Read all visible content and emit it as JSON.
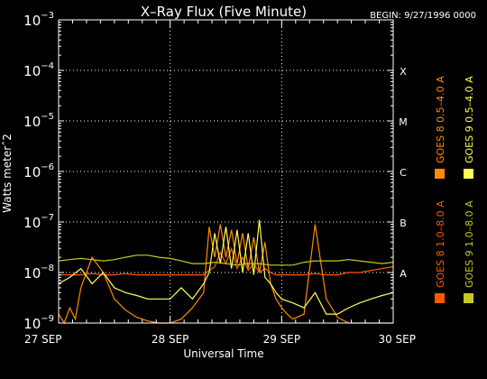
{
  "chart_data": {
    "type": "line",
    "title": "X–Ray Flux (Five Minute)",
    "begin_label": "BEGIN: 9/27/1996 0000",
    "xlabel": "Universal Time",
    "ylabel": "Watts meterˆ2",
    "y_scale": "log",
    "ylim": [
      1e-09,
      0.001
    ],
    "y_ticks": [
      {
        "base": "10",
        "exp": "−9",
        "value": 1e-09
      },
      {
        "base": "10",
        "exp": "−8",
        "value": 1e-08
      },
      {
        "base": "10",
        "exp": "−7",
        "value": 1e-07
      },
      {
        "base": "10",
        "exp": "−6",
        "value": 1e-06
      },
      {
        "base": "10",
        "exp": "−5",
        "value": 1e-05
      },
      {
        "base": "10",
        "exp": "−4",
        "value": 0.0001
      },
      {
        "base": "10",
        "exp": "−3",
        "value": 0.001
      }
    ],
    "x_ticks": [
      "27 SEP",
      "28 SEP",
      "29 SEP",
      "30 SEP"
    ],
    "xlim": [
      0,
      3
    ],
    "classes": [
      {
        "label": "A",
        "value": 1e-08
      },
      {
        "label": "B",
        "value": 1e-07
      },
      {
        "label": "C",
        "value": 1e-06
      },
      {
        "label": "M",
        "value": 1e-05
      },
      {
        "label": "X",
        "value": 0.0001
      }
    ],
    "grid": "dotted-at-classes-and-day-boundaries",
    "legend_placement": "right-vertical",
    "series": [
      {
        "name": "GOES 8 1.0–8.0 A",
        "color": "#ff5a00",
        "x": [
          0,
          0.1,
          0.2,
          0.3,
          0.4,
          0.5,
          0.6,
          0.7,
          0.8,
          0.9,
          1.0,
          1.1,
          1.2,
          1.3,
          1.35,
          1.4,
          1.45,
          1.5,
          1.55,
          1.6,
          1.65,
          1.7,
          1.75,
          1.8,
          1.85,
          1.9,
          1.95,
          2.0,
          2.1,
          2.2,
          2.3,
          2.4,
          2.5,
          2.6,
          2.7,
          2.8,
          2.9,
          3.0
        ],
        "values": [
          9e-09,
          9e-09,
          9e-09,
          9.5e-09,
          9e-09,
          9e-09,
          9.5e-09,
          9e-09,
          9e-09,
          9e-09,
          9e-09,
          9e-09,
          9e-09,
          9e-09,
          1.1e-08,
          1.3e-08,
          2.5e-08,
          1.5e-08,
          3e-08,
          1.2e-08,
          2e-08,
          1.1e-08,
          1.5e-08,
          1e-08,
          1.2e-08,
          1e-08,
          9e-09,
          9e-09,
          9e-09,
          9e-09,
          9.5e-09,
          9e-09,
          9e-09,
          1e-08,
          1e-08,
          1.1e-08,
          1.2e-08,
          1.3e-08
        ]
      },
      {
        "name": "GOES 8 0.5–4.0 A",
        "color": "#ff8c00",
        "x": [
          0,
          0.05,
          0.1,
          0.15,
          0.2,
          0.3,
          0.4,
          0.5,
          0.6,
          0.7,
          0.8,
          0.9,
          1.0,
          1.1,
          1.2,
          1.3,
          1.35,
          1.4,
          1.45,
          1.5,
          1.55,
          1.6,
          1.65,
          1.7,
          1.75,
          1.8,
          1.85,
          1.9,
          1.95,
          2.0,
          2.05,
          2.1,
          2.2,
          2.3,
          2.4,
          2.5,
          2.6,
          2.7,
          2.8,
          2.9,
          3.0
        ],
        "values": [
          1.5e-09,
          1e-09,
          2e-09,
          1.2e-09,
          5e-09,
          2e-08,
          1e-08,
          3e-09,
          1.8e-09,
          1.3e-09,
          1.1e-09,
          1e-09,
          1e-09,
          1.2e-09,
          2e-09,
          4e-09,
          8e-08,
          2e-08,
          9e-08,
          2e-08,
          7e-08,
          1.5e-08,
          6e-08,
          1.2e-08,
          5e-08,
          1e-08,
          4e-08,
          6e-09,
          3e-09,
          2e-09,
          1.5e-09,
          1.2e-09,
          1.5e-09,
          9e-08,
          3e-09,
          1.3e-09,
          1e-09,
          1e-09,
          1e-09,
          1e-09,
          1e-09
        ]
      },
      {
        "name": "GOES 9 0.5–4.0 A",
        "color": "#ffff55",
        "x": [
          0,
          0.1,
          0.2,
          0.3,
          0.4,
          0.5,
          0.6,
          0.7,
          0.8,
          0.9,
          1.0,
          1.1,
          1.2,
          1.3,
          1.35,
          1.4,
          1.45,
          1.5,
          1.55,
          1.6,
          1.65,
          1.7,
          1.75,
          1.8,
          1.85,
          1.9,
          1.95,
          2.0,
          2.1,
          2.2,
          2.3,
          2.4,
          2.5,
          2.6,
          2.7,
          2.8,
          2.9,
          3.0
        ],
        "values": [
          6e-09,
          8e-09,
          1.2e-08,
          6e-09,
          1e-08,
          5e-09,
          4e-09,
          3.5e-09,
          3e-09,
          3e-09,
          3e-09,
          5e-09,
          3e-09,
          6e-09,
          1e-08,
          6e-08,
          1.5e-08,
          8e-08,
          1.2e-08,
          7e-08,
          1e-08,
          6e-08,
          9e-09,
          1.1e-07,
          8e-09,
          6e-09,
          4e-09,
          3e-09,
          2.5e-09,
          2e-09,
          4e-09,
          1.5e-09,
          1.5e-09,
          2e-09,
          2.5e-09,
          3e-09,
          3.5e-09,
          4e-09
        ]
      },
      {
        "name": "GOES 9 1.0–8.0 A",
        "color": "#c8c81e",
        "x": [
          0,
          0.1,
          0.2,
          0.3,
          0.4,
          0.5,
          0.6,
          0.7,
          0.8,
          0.9,
          1.0,
          1.1,
          1.2,
          1.3,
          1.4,
          1.5,
          1.6,
          1.7,
          1.8,
          1.9,
          2.0,
          2.1,
          2.2,
          2.3,
          2.4,
          2.5,
          2.6,
          2.7,
          2.8,
          2.9,
          3.0
        ],
        "values": [
          1.7e-08,
          1.8e-08,
          1.9e-08,
          1.8e-08,
          1.7e-08,
          1.8e-08,
          2e-08,
          2.2e-08,
          2.2e-08,
          2e-08,
          1.9e-08,
          1.7e-08,
          1.5e-08,
          1.5e-08,
          1.6e-08,
          1.5e-08,
          1.4e-08,
          1.5e-08,
          1.5e-08,
          1.4e-08,
          1.4e-08,
          1.4e-08,
          1.6e-08,
          1.7e-08,
          1.7e-08,
          1.7e-08,
          1.8e-08,
          1.7e-08,
          1.6e-08,
          1.5e-08,
          1.6e-08
        ]
      }
    ]
  }
}
